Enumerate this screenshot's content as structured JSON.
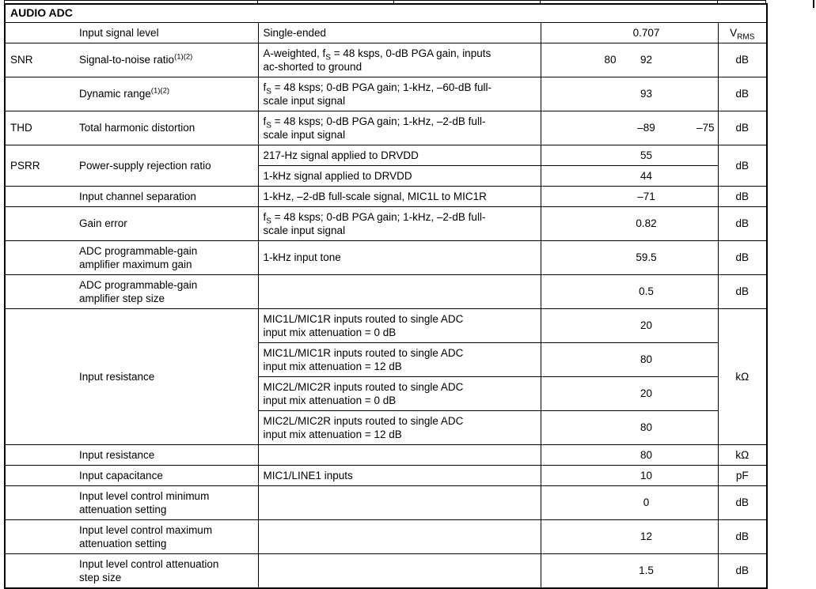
{
  "colors": {
    "border": "#000000",
    "text": "#000000",
    "background": "#ffffff"
  },
  "section_header": "AUDIO ADC",
  "table": {
    "rows": [
      {
        "symbol": "",
        "param": "Input signal level",
        "unit": "V~RMS~",
        "conditions": [
          {
            "text": "Single-ended",
            "min": "",
            "typ": "0.707",
            "max": ""
          }
        ]
      },
      {
        "symbol": "SNR",
        "param": "Signal-to-noise ratio^(1)(2)^",
        "unit": "dB",
        "conditions": [
          {
            "text": "A-weighted, f~S~ = 48 ksps, 0-dB PGA gain, inputs\nac-shorted to ground",
            "min": "80",
            "typ": "92",
            "max": ""
          }
        ]
      },
      {
        "symbol": "",
        "param": "Dynamic range^(1)(2)^",
        "unit": "dB",
        "conditions": [
          {
            "text": "f~S~ = 48 ksps; 0-dB PGA gain; 1-kHz, –60-dB full-\nscale input signal",
            "min": "",
            "typ": "93",
            "max": ""
          }
        ]
      },
      {
        "symbol": "THD",
        "param": "Total harmonic distortion",
        "unit": "dB",
        "conditions": [
          {
            "text": "f~S~ = 48 ksps; 0-dB PGA gain; 1-kHz, –2-dB full-\nscale input signal",
            "min": "",
            "typ": "–89",
            "max": "–75"
          }
        ]
      },
      {
        "symbol": "PSRR",
        "param": "Power-supply rejection ratio",
        "unit": "dB",
        "conditions": [
          {
            "text": "217-Hz signal applied to DRVDD",
            "min": "",
            "typ": "55",
            "max": ""
          },
          {
            "text": "1-kHz signal applied to DRVDD",
            "min": "",
            "typ": "44",
            "max": ""
          }
        ]
      },
      {
        "symbol": "",
        "param": "Input channel separation",
        "unit": "dB",
        "conditions": [
          {
            "text": "1-kHz, –2-dB full-scale signal, MIC1L to MIC1R",
            "min": "",
            "typ": "–71",
            "max": ""
          }
        ]
      },
      {
        "symbol": "",
        "param": "Gain error",
        "unit": "dB",
        "conditions": [
          {
            "text": "f~S~ = 48 ksps; 0-dB PGA gain; 1-kHz, –2-dB full-\nscale input signal",
            "min": "",
            "typ": "0.82",
            "max": ""
          }
        ]
      },
      {
        "symbol": "",
        "param": "ADC programmable-gain\namplifier maximum gain",
        "unit": "dB",
        "conditions": [
          {
            "text": "1-kHz input tone",
            "min": "",
            "typ": "59.5",
            "max": ""
          }
        ]
      },
      {
        "symbol": "",
        "param": "ADC programmable-gain\namplifier step size",
        "unit": "dB",
        "conditions": [
          {
            "text": "",
            "min": "",
            "typ": "0.5",
            "max": ""
          }
        ]
      },
      {
        "symbol": "",
        "param": "Input resistance",
        "unit": "kΩ",
        "conditions": [
          {
            "text": "MIC1L/MIC1R inputs routed to single ADC\ninput mix attenuation = 0 dB",
            "min": "",
            "typ": "20",
            "max": ""
          },
          {
            "text": "MIC1L/MIC1R inputs routed to single ADC\ninput mix attenuation = 12 dB",
            "min": "",
            "typ": "80",
            "max": ""
          },
          {
            "text": "MIC2L/MIC2R inputs routed to single ADC\ninput mix attenuation = 0 dB",
            "min": "",
            "typ": "20",
            "max": ""
          },
          {
            "text": "MIC2L/MIC2R inputs routed to single ADC\ninput mix attenuation = 12 dB",
            "min": "",
            "typ": "80",
            "max": ""
          }
        ]
      },
      {
        "symbol": "",
        "param": "Input resistance",
        "unit": "kΩ",
        "conditions": [
          {
            "text": "",
            "min": "",
            "typ": "80",
            "max": ""
          }
        ]
      },
      {
        "symbol": "",
        "param": "Input capacitance",
        "unit": "pF",
        "conditions": [
          {
            "text": "MIC1/LINE1 inputs",
            "min": "",
            "typ": "10",
            "max": ""
          }
        ]
      },
      {
        "symbol": "",
        "param": "Input level control minimum\nattenuation setting",
        "unit": "dB",
        "conditions": [
          {
            "text": "",
            "min": "",
            "typ": "0",
            "max": ""
          }
        ]
      },
      {
        "symbol": "",
        "param": "Input level control maximum\nattenuation setting",
        "unit": "dB",
        "conditions": [
          {
            "text": "",
            "min": "",
            "typ": "12",
            "max": ""
          }
        ]
      },
      {
        "symbol": "",
        "param": "Input level control attenuation\nstep size",
        "unit": "dB",
        "conditions": [
          {
            "text": "",
            "min": "",
            "typ": "1.5",
            "max": ""
          }
        ]
      }
    ]
  }
}
